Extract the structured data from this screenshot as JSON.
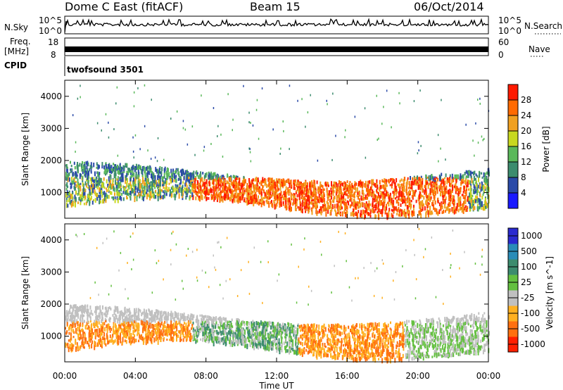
{
  "header": {
    "station": "Dome C East (fitACF)",
    "beam": "Beam 15",
    "date": "06/Oct/2014"
  },
  "nsky_panel": {
    "left_label": "N.Sky",
    "right_label": "N.Search",
    "left_ticks": [
      "10^5",
      "10^0"
    ],
    "right_ticks": [
      "10^5",
      "10^0"
    ]
  },
  "freq_panel": {
    "left_label_line1": "Freq.",
    "left_label_line2": "[MHz]",
    "right_label": "Nave",
    "left_ticks": [
      "18",
      "8"
    ],
    "right_ticks": [
      "60",
      "0"
    ]
  },
  "cpid_panel": {
    "left_label": "CPID",
    "program": "twofsound 3501"
  },
  "chart_data": [
    {
      "type": "heatmap",
      "name": "power",
      "ylabel": "Slant Range [km]",
      "yticks": [
        "1000",
        "2000",
        "3000",
        "4000"
      ],
      "ylim": [
        200,
        4500
      ],
      "colorbar_label": "Power [dB]",
      "colorbar_ticks": [
        "4",
        "8",
        "12",
        "16",
        "20",
        "24",
        "28"
      ],
      "colors": [
        "#1a1aff",
        "#2a4aa8",
        "#3c8c6e",
        "#5ab85a",
        "#c8d820",
        "#f0a020",
        "#ff6a00",
        "#ff1a00"
      ]
    },
    {
      "type": "heatmap",
      "name": "velocity",
      "ylabel": "Slant Range [km]",
      "yticks": [
        "1000",
        "2000",
        "3000",
        "4000"
      ],
      "ylim": [
        200,
        4500
      ],
      "colorbar_label": "Velocity [m s^-1]",
      "colorbar_ticks": [
        "1000",
        "500",
        "100",
        "25",
        "-25",
        "-100",
        "-500",
        "-1000"
      ],
      "colors": [
        "#2a2ad0",
        "#2a8cb8",
        "#3c8c6e",
        "#64c040",
        "#c0c0c0",
        "#ffb020",
        "#ff7010",
        "#ff2000"
      ]
    }
  ],
  "time_axis": {
    "xlabel": "Time UT",
    "ticks": [
      "00:00",
      "04:00",
      "08:00",
      "12:00",
      "16:00",
      "20:00",
      "00:00"
    ]
  }
}
